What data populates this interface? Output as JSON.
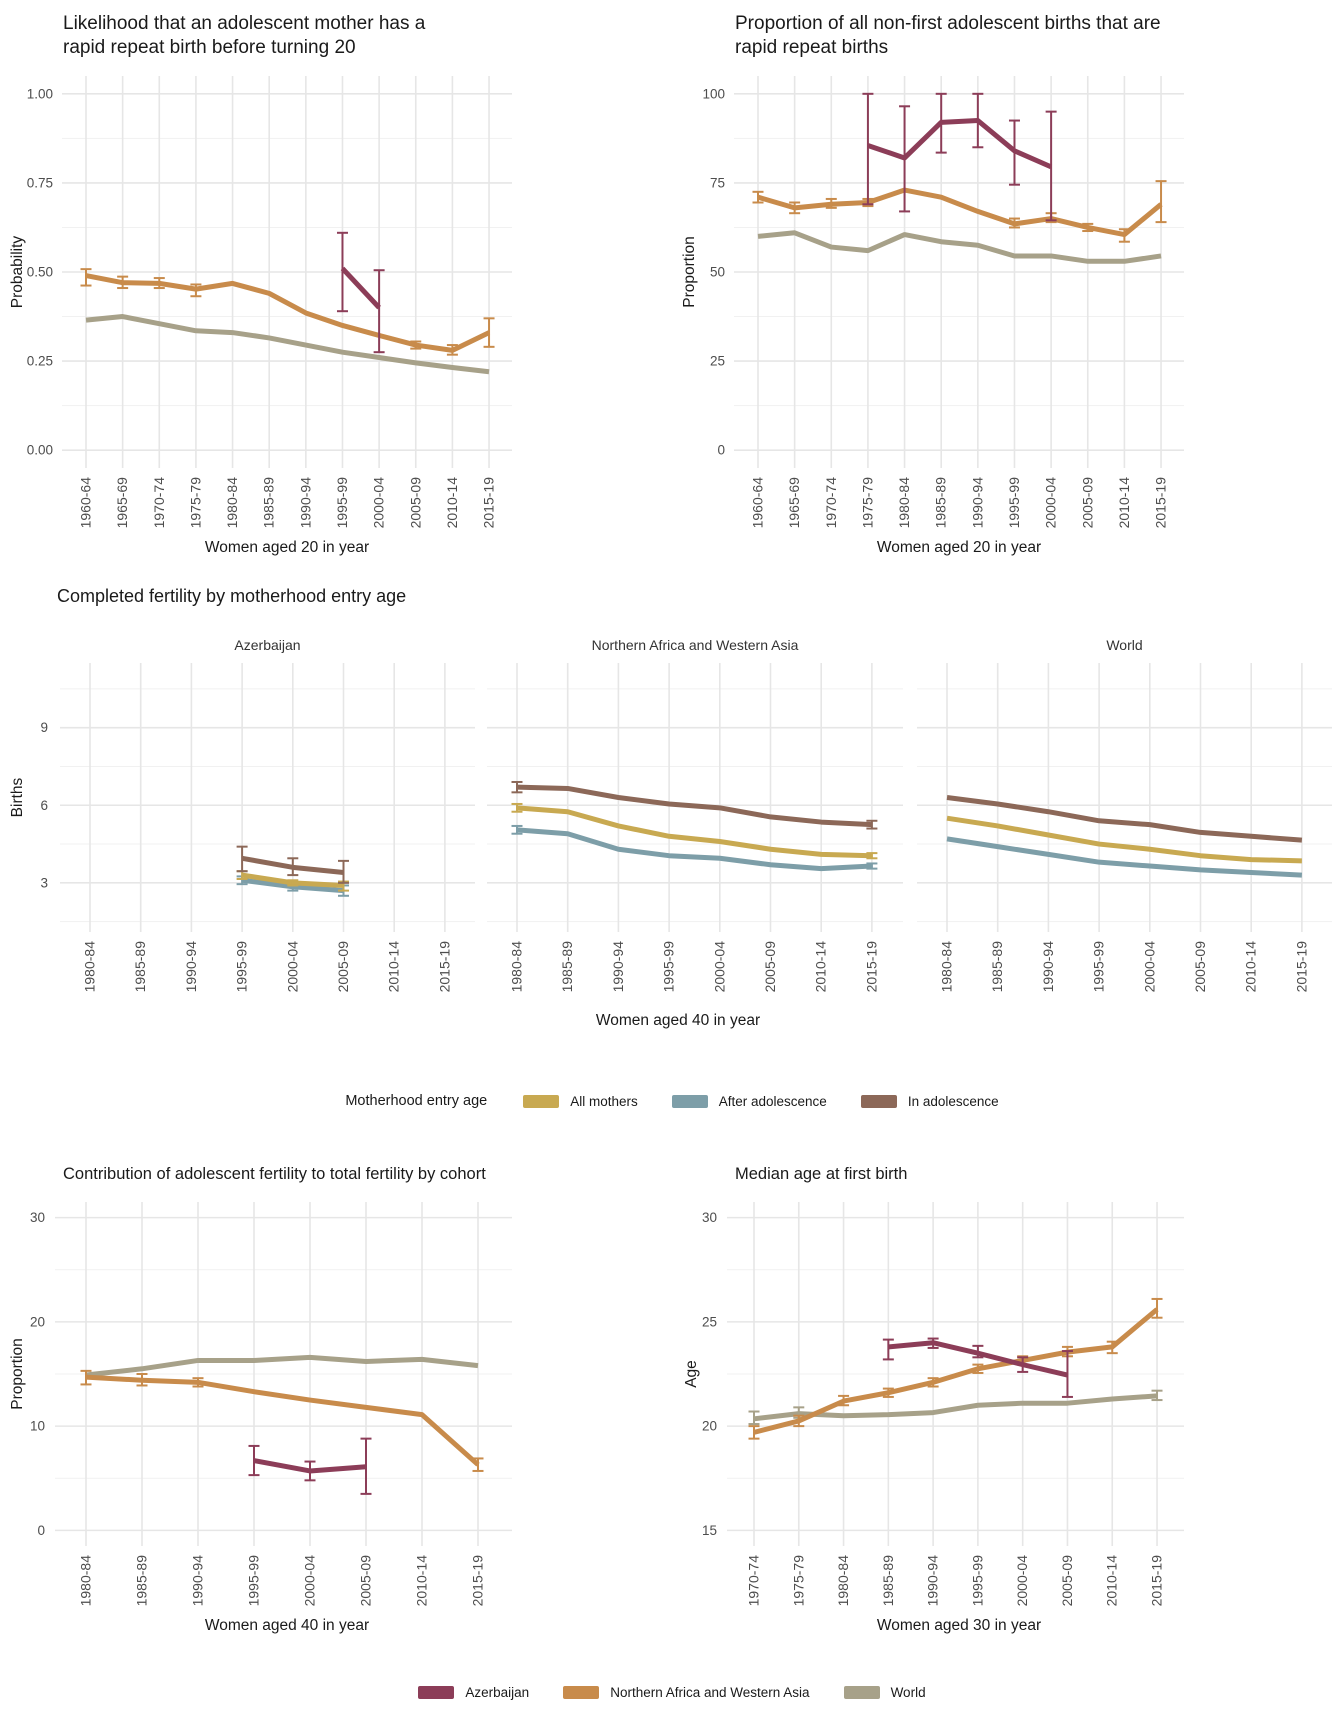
{
  "colors": {
    "azerbaijan": "#8C3D58",
    "nawa": "#C88B4B",
    "world": "#A7A189",
    "all_mothers": "#C8A951",
    "after_adolescence": "#7D9EA8",
    "in_adolescence": "#8C6858",
    "grid_major": "#E6E6E6",
    "grid_minor": "#F1F1F1",
    "tick_text": "#4D4D4D",
    "axis_title_text": "#1A1A1A",
    "strip_text": "#333333"
  },
  "chart_data": [
    {
      "type": "line",
      "title": "Likelihood that an adolescent mother has a\nrapid repeat birth before turning 20",
      "xlabel": "Women aged 20 in year",
      "ylabel": "Probability",
      "ylim": [
        -0.05,
        1.05
      ],
      "yticks": [
        0,
        0.25,
        0.5,
        0.75,
        1
      ],
      "ytick_labels": [
        "0.00",
        "0.25",
        "0.50",
        "0.75",
        "1.00"
      ],
      "grid": true,
      "legend_position": "none",
      "categories": [
        "1960-64",
        "1965-69",
        "1970-74",
        "1975-79",
        "1980-84",
        "1985-89",
        "1990-94",
        "1995-99",
        "2000-04",
        "2005-09",
        "2010-14",
        "2015-19"
      ],
      "series": [
        {
          "name": "World",
          "color_key": "world",
          "values": [
            0.365,
            0.375,
            0.355,
            0.335,
            0.33,
            0.315,
            0.295,
            0.275,
            0.26,
            0.245,
            0.232,
            0.22
          ]
        },
        {
          "name": "Northern Africa and Western Asia",
          "color_key": "nawa",
          "values": [
            0.49,
            0.47,
            0.468,
            0.452,
            0.468,
            0.44,
            0.385,
            0.35,
            0.322,
            0.295,
            0.28,
            0.33
          ],
          "err_low": [
            0.462,
            0.455,
            0.455,
            0.432,
            null,
            null,
            null,
            null,
            null,
            0.285,
            0.268,
            0.29
          ],
          "err_high": [
            0.508,
            0.487,
            0.483,
            0.465,
            null,
            null,
            null,
            null,
            null,
            0.305,
            0.295,
            0.37
          ]
        },
        {
          "name": "Azerbaijan",
          "color_key": "azerbaijan",
          "values": [
            null,
            null,
            null,
            null,
            null,
            null,
            null,
            0.51,
            0.4,
            null,
            null,
            null
          ],
          "err_low": [
            null,
            null,
            null,
            null,
            null,
            null,
            null,
            0.39,
            0.275,
            null,
            null,
            null
          ],
          "err_high": [
            null,
            null,
            null,
            null,
            null,
            null,
            null,
            0.61,
            0.505,
            null,
            null,
            null
          ]
        }
      ]
    },
    {
      "type": "line",
      "title": "Proportion of all non-first adolescent births that are\nrapid repeat births",
      "xlabel": "Women aged 20 in year",
      "ylabel": "Proportion",
      "ylim": [
        -5,
        105
      ],
      "yticks": [
        0,
        25,
        50,
        75,
        100
      ],
      "ytick_labels": [
        "0",
        "25",
        "50",
        "75",
        "100"
      ],
      "grid": true,
      "legend_position": "none",
      "categories": [
        "1960-64",
        "1965-69",
        "1970-74",
        "1975-79",
        "1980-84",
        "1985-89",
        "1990-94",
        "1995-99",
        "2000-04",
        "2005-09",
        "2010-14",
        "2015-19"
      ],
      "series": [
        {
          "name": "World",
          "color_key": "world",
          "values": [
            60,
            61,
            57,
            56,
            60.5,
            58.5,
            57.5,
            54.5,
            54.5,
            53,
            53,
            54.5
          ]
        },
        {
          "name": "Northern Africa and Western Asia",
          "color_key": "nawa",
          "values": [
            71,
            68,
            69,
            69.5,
            73,
            71,
            67,
            63.5,
            65,
            62.5,
            60.5,
            69
          ],
          "err_low": [
            69.5,
            66.5,
            68,
            68.5,
            null,
            null,
            null,
            62.5,
            64,
            61.5,
            58.5,
            64
          ],
          "err_high": [
            72.5,
            69.5,
            70.5,
            70.5,
            null,
            null,
            null,
            65,
            66.5,
            63.5,
            62,
            75.5
          ]
        },
        {
          "name": "Azerbaijan",
          "color_key": "azerbaijan",
          "values": [
            null,
            null,
            null,
            85.5,
            82,
            92,
            92.5,
            84,
            79.5,
            null,
            null,
            null
          ],
          "err_low": [
            null,
            null,
            null,
            69,
            67,
            83.5,
            85,
            74.5,
            64.5,
            null,
            null,
            null
          ],
          "err_high": [
            null,
            null,
            null,
            100,
            96.5,
            100,
            100,
            92.5,
            95,
            null,
            null,
            null
          ]
        }
      ]
    },
    {
      "type": "line-faceted",
      "title": "Completed fertility by motherhood entry age",
      "xlabel": "Women aged 40 in year",
      "ylabel": "Births",
      "ylim": [
        1.1,
        11.5
      ],
      "yticks": [
        3,
        6,
        9
      ],
      "ytick_labels": [
        "3",
        "6",
        "9"
      ],
      "grid": true,
      "legend_position": "bottom",
      "categories": [
        "1980-84",
        "1985-89",
        "1990-94",
        "1995-99",
        "2000-04",
        "2005-09",
        "2010-14",
        "2015-19"
      ],
      "facets": [
        {
          "label": "Azerbaijan",
          "series": [
            {
              "name": "After adolescence",
              "color_key": "after_adolescence",
              "values": [
                null,
                null,
                null,
                3.1,
                2.85,
                2.7,
                null,
                null
              ],
              "err_low": [
                null,
                null,
                null,
                2.95,
                2.7,
                2.5,
                null,
                null
              ],
              "err_high": [
                null,
                null,
                null,
                3.25,
                3.0,
                2.9,
                null,
                null
              ]
            },
            {
              "name": "All mothers",
              "color_key": "all_mothers",
              "values": [
                null,
                null,
                null,
                3.3,
                3.0,
                2.9,
                null,
                null
              ],
              "err_low": [
                null,
                null,
                null,
                3.15,
                2.9,
                2.7,
                null,
                null
              ],
              "err_high": [
                null,
                null,
                null,
                3.45,
                3.1,
                3.05,
                null,
                null
              ]
            },
            {
              "name": "In adolescence",
              "color_key": "in_adolescence",
              "values": [
                null,
                null,
                null,
                3.95,
                3.6,
                3.4,
                null,
                null
              ],
              "err_low": [
                null,
                null,
                null,
                3.45,
                3.3,
                3.0,
                null,
                null
              ],
              "err_high": [
                null,
                null,
                null,
                4.4,
                3.95,
                3.85,
                null,
                null
              ]
            }
          ]
        },
        {
          "label": "Northern Africa and Western Asia",
          "series": [
            {
              "name": "After adolescence",
              "color_key": "after_adolescence",
              "values": [
                5.05,
                4.9,
                4.3,
                4.05,
                3.95,
                3.7,
                3.55,
                3.65
              ],
              "err_low": [
                4.9,
                null,
                null,
                null,
                null,
                null,
                null,
                3.55
              ],
              "err_high": [
                5.2,
                null,
                null,
                null,
                null,
                null,
                null,
                3.75
              ]
            },
            {
              "name": "All mothers",
              "color_key": "all_mothers",
              "values": [
                5.9,
                5.75,
                5.2,
                4.8,
                4.6,
                4.3,
                4.1,
                4.05
              ],
              "err_low": [
                5.75,
                null,
                null,
                null,
                null,
                null,
                null,
                3.95
              ],
              "err_high": [
                6.05,
                null,
                null,
                null,
                null,
                null,
                null,
                4.15
              ]
            },
            {
              "name": "In adolescence",
              "color_key": "in_adolescence",
              "values": [
                6.7,
                6.65,
                6.3,
                6.05,
                5.9,
                5.55,
                5.35,
                5.25
              ],
              "err_low": [
                6.5,
                null,
                null,
                null,
                null,
                null,
                null,
                5.1
              ],
              "err_high": [
                6.9,
                null,
                null,
                null,
                null,
                null,
                null,
                5.4
              ]
            }
          ]
        },
        {
          "label": "World",
          "series": [
            {
              "name": "After adolescence",
              "color_key": "after_adolescence",
              "values": [
                4.7,
                4.4,
                4.1,
                3.8,
                3.65,
                3.5,
                3.4,
                3.3
              ]
            },
            {
              "name": "All mothers",
              "color_key": "all_mothers",
              "values": [
                5.5,
                5.2,
                4.85,
                4.5,
                4.3,
                4.05,
                3.9,
                3.85
              ]
            },
            {
              "name": "In adolescence",
              "color_key": "in_adolescence",
              "values": [
                6.3,
                6.05,
                5.75,
                5.4,
                5.25,
                4.95,
                4.8,
                4.65
              ]
            }
          ]
        }
      ]
    },
    {
      "type": "line",
      "title": "Contribution of adolescent fertility to total fertility by cohort",
      "xlabel": "Women aged 40 in year",
      "ylabel": "Proportion",
      "ylim": [
        -1.5,
        31.5
      ],
      "yticks": [
        0,
        10,
        20,
        30
      ],
      "ytick_labels": [
        "0",
        "10",
        "20",
        "30"
      ],
      "grid": true,
      "legend_position": "bottom",
      "categories": [
        "1980-84",
        "1985-89",
        "1990-94",
        "1995-99",
        "2000-04",
        "2005-09",
        "2010-14",
        "2015-19"
      ],
      "series": [
        {
          "name": "World",
          "color_key": "world",
          "values": [
            14.9,
            15.5,
            16.3,
            16.3,
            16.6,
            16.2,
            16.4,
            15.8
          ]
        },
        {
          "name": "Northern Africa and Western Asia",
          "color_key": "nawa",
          "values": [
            14.7,
            14.4,
            14.2,
            13.3,
            12.5,
            11.8,
            11.1,
            6.3
          ],
          "err_low": [
            14.0,
            13.9,
            13.8,
            null,
            null,
            null,
            null,
            5.7
          ],
          "err_high": [
            15.3,
            15.0,
            14.6,
            null,
            null,
            null,
            null,
            6.9
          ]
        },
        {
          "name": "Azerbaijan",
          "color_key": "azerbaijan",
          "values": [
            null,
            null,
            null,
            6.7,
            5.7,
            6.1,
            null,
            null
          ],
          "err_low": [
            null,
            null,
            null,
            5.3,
            4.8,
            3.5,
            null,
            null
          ],
          "err_high": [
            null,
            null,
            null,
            8.1,
            6.6,
            8.8,
            null,
            null
          ]
        }
      ]
    },
    {
      "type": "line",
      "title": "Median age at first birth",
      "xlabel": "Women aged 30 in year",
      "ylabel": "Age",
      "ylim": [
        14.25,
        30.75
      ],
      "yticks": [
        15,
        20,
        25,
        30
      ],
      "ytick_labels": [
        "15",
        "20",
        "25",
        "30"
      ],
      "grid": true,
      "legend_position": "bottom",
      "categories": [
        "1970-74",
        "1975-79",
        "1980-84",
        "1985-89",
        "1990-94",
        "1995-99",
        "2000-04",
        "2005-09",
        "2010-14",
        "2015-19"
      ],
      "series": [
        {
          "name": "World",
          "color_key": "world",
          "values": [
            20.35,
            20.6,
            20.5,
            20.55,
            20.65,
            21.0,
            21.1,
            21.1,
            21.3,
            21.45
          ],
          "err_low": [
            20.1,
            20.4,
            null,
            null,
            null,
            null,
            null,
            null,
            null,
            21.25
          ],
          "err_high": [
            20.7,
            20.9,
            null,
            null,
            null,
            null,
            null,
            null,
            null,
            21.7
          ]
        },
        {
          "name": "Northern Africa and Western Asia",
          "color_key": "nawa",
          "values": [
            19.7,
            20.25,
            21.2,
            21.6,
            22.1,
            22.75,
            23.15,
            23.55,
            23.8,
            25.6
          ],
          "err_low": [
            19.4,
            20.0,
            21.0,
            21.4,
            21.9,
            22.55,
            22.95,
            23.35,
            23.5,
            25.2
          ],
          "err_high": [
            20.0,
            20.5,
            21.45,
            21.8,
            22.3,
            22.95,
            23.35,
            23.8,
            24.05,
            26.1
          ]
        },
        {
          "name": "Azerbaijan",
          "color_key": "azerbaijan",
          "values": [
            null,
            null,
            null,
            23.8,
            24.0,
            23.5,
            22.95,
            22.45,
            null,
            null
          ],
          "err_low": [
            null,
            null,
            null,
            23.2,
            23.75,
            23.3,
            22.6,
            21.4,
            null,
            null
          ],
          "err_high": [
            null,
            null,
            null,
            24.15,
            24.2,
            23.85,
            23.3,
            23.6,
            null,
            null
          ]
        }
      ]
    }
  ],
  "legends": {
    "motherhood": {
      "title": "Motherhood entry age",
      "items": [
        {
          "label": "All mothers",
          "color_key": "all_mothers"
        },
        {
          "label": "After adolescence",
          "color_key": "after_adolescence"
        },
        {
          "label": "In adolescence",
          "color_key": "in_adolescence"
        }
      ]
    },
    "region": {
      "items": [
        {
          "label": "Azerbaijan",
          "color_key": "azerbaijan"
        },
        {
          "label": "Northern Africa and Western Asia",
          "color_key": "nawa"
        },
        {
          "label": "World",
          "color_key": "world"
        }
      ]
    }
  }
}
